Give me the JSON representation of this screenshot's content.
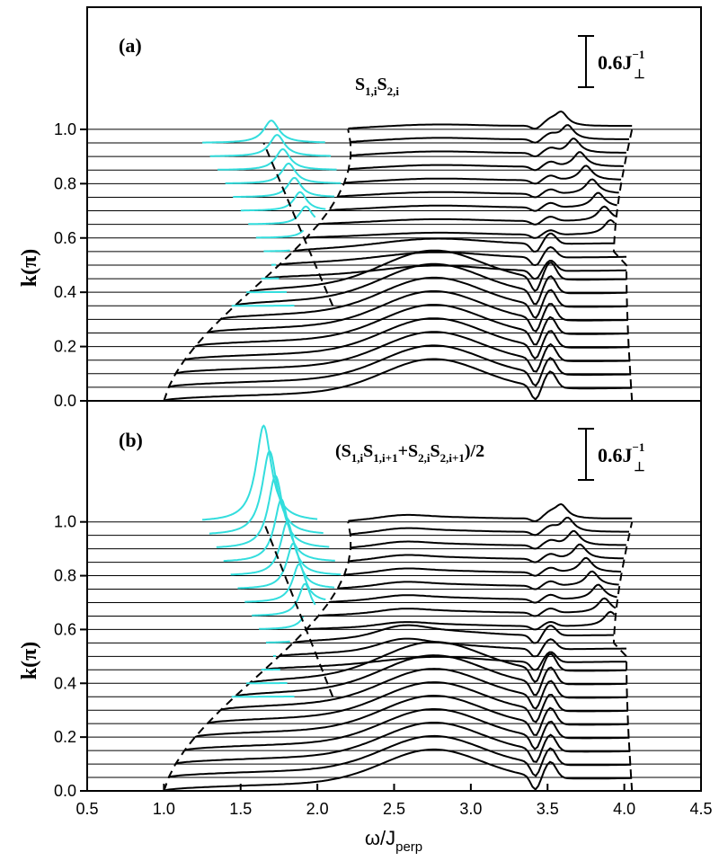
{
  "chart_data": [
    {
      "type": "line",
      "panel_label": "(a)",
      "operator": {
        "s1": "S",
        "sub1": "1,i",
        "s2": "S",
        "sub2": "2,i"
      },
      "scale_bar": {
        "text": "0.6J",
        "sup": "−1",
        "sub": "⊥",
        "value": 0.6
      },
      "ylabel": "k(π)",
      "xlim": [
        0.5,
        4.5
      ],
      "ylim": [
        0.0,
        1.45
      ],
      "yticks": [
        "0.0",
        "0.2",
        "0.4",
        "0.6",
        "0.8",
        "1.0"
      ],
      "baselines_k": [
        0.0,
        0.05,
        0.1,
        0.15,
        0.2,
        0.25,
        0.3,
        0.35,
        0.4,
        0.45,
        0.5,
        0.55,
        0.6,
        0.65,
        0.7,
        0.75,
        0.8,
        0.85,
        0.9,
        0.95,
        1.0
      ],
      "series": [
        {
          "color": "#000000",
          "role": "two-magnon continuum curves, one per k",
          "k_range": [
            0.0,
            1.0
          ]
        },
        {
          "color": "#33dddd",
          "role": "bound-state peaks",
          "k_range": [
            0.35,
            0.95
          ]
        },
        {
          "color": "#000000",
          "role": "continuum boundaries (dashed)"
        }
      ]
    },
    {
      "type": "line",
      "panel_label": "(b)",
      "operator": {
        "a": "(S",
        "s_a": "1,i",
        "b": "S",
        "s_b": "1,i+1",
        "c": "+S",
        "s_c": "2,i",
        "d": "S",
        "s_d": "2,i+1",
        "e": ")/2"
      },
      "scale_bar": {
        "text": "0.6J",
        "sup": "−1",
        "sub": "⊥",
        "value": 0.6
      },
      "ylabel": "k(π)",
      "xlim": [
        0.5,
        4.5
      ],
      "ylim": [
        0.0,
        1.45
      ],
      "yticks": [
        "0.0",
        "0.2",
        "0.4",
        "0.6",
        "0.8",
        "1.0"
      ],
      "baselines_k": [
        0.0,
        0.05,
        0.1,
        0.15,
        0.2,
        0.25,
        0.3,
        0.35,
        0.4,
        0.45,
        0.5,
        0.55,
        0.6,
        0.65,
        0.7,
        0.75,
        0.8,
        0.85,
        0.9,
        0.95,
        1.0
      ],
      "series": [
        {
          "color": "#000000",
          "role": "two-magnon continuum curves, one per k",
          "k_range": [
            0.0,
            1.0
          ]
        },
        {
          "color": "#33dddd",
          "role": "bound-state peaks",
          "k_range": [
            0.35,
            1.0
          ]
        },
        {
          "color": "#000000",
          "role": "continuum boundaries (dashed)"
        }
      ]
    }
  ],
  "xaxis": {
    "ticks": [
      "0.5",
      "1.0",
      "1.5",
      "2.0",
      "2.5",
      "3.0",
      "3.5",
      "4.0",
      "4.5"
    ],
    "title_main": "ω/J",
    "title_sub": "perp"
  }
}
